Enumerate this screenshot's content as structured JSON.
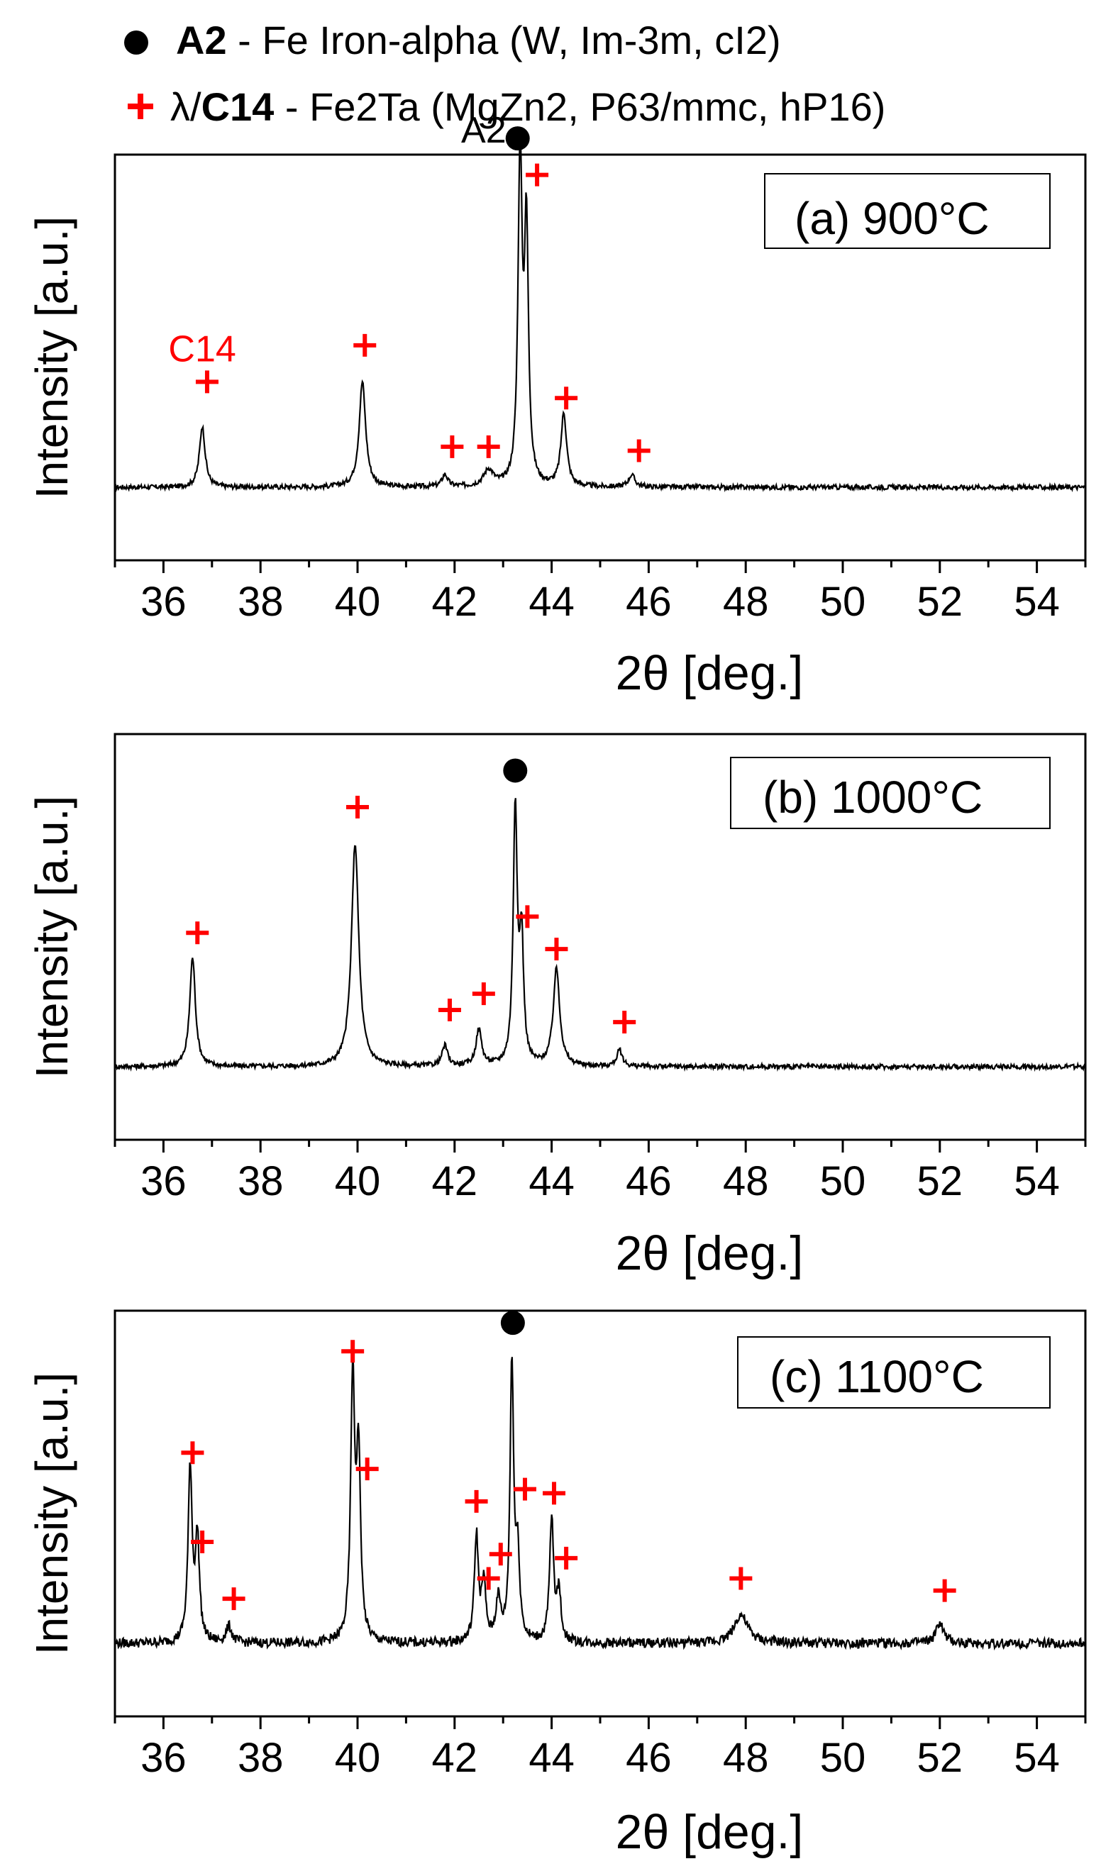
{
  "legend": {
    "entries": [
      {
        "symbol": "circle",
        "color": "#000000",
        "label_bold": "A2",
        "label_rest": " - Fe Iron-alpha (W, Im-3m, cI2)"
      },
      {
        "symbol": "plus",
        "color": "#ff0000",
        "label_prefix": "λ/",
        "label_bold": "C14",
        "label_rest": " - Fe2Ta (MgZn2, P63/mmc, hP16)"
      }
    ]
  },
  "colors": {
    "trace": "#000000",
    "c14_marker": "#ff0000",
    "a2_marker": "#000000",
    "axis": "#000000"
  },
  "chart_data": [
    {
      "type": "line",
      "title": "(a) 900°C",
      "xlabel": "2θ [deg.]",
      "ylabel": "Intensity [a.u.]",
      "xlim": [
        35,
        55
      ],
      "ylim": [
        0,
        100
      ],
      "xticks": [
        36,
        38,
        40,
        42,
        44,
        46,
        48,
        50,
        52,
        54
      ],
      "baseline": 18,
      "peaks": [
        {
          "x": 36.8,
          "h": 15,
          "w": 0.07
        },
        {
          "x": 40.1,
          "h": 26,
          "w": 0.08
        },
        {
          "x": 41.8,
          "h": 3,
          "w": 0.07
        },
        {
          "x": 42.7,
          "h": 4,
          "w": 0.12
        },
        {
          "x": 43.35,
          "h": 81,
          "w": 0.05
        },
        {
          "x": 43.48,
          "h": 62,
          "w": 0.05
        },
        {
          "x": 44.25,
          "h": 18,
          "w": 0.07
        },
        {
          "x": 45.65,
          "h": 3,
          "w": 0.08
        }
      ],
      "markers": [
        {
          "phase": "C14",
          "x": 36.9,
          "y": 44
        },
        {
          "phase": "C14",
          "x": 40.15,
          "y": 53
        },
        {
          "phase": "C14",
          "x": 41.95,
          "y": 28
        },
        {
          "phase": "C14",
          "x": 42.7,
          "y": 28
        },
        {
          "phase": "C14",
          "x": 43.7,
          "y": 95
        },
        {
          "phase": "C14",
          "x": 44.3,
          "y": 40
        },
        {
          "phase": "C14",
          "x": 45.8,
          "y": 27
        },
        {
          "phase": "A2",
          "x": 43.3,
          "y": 104
        }
      ],
      "annotations": [
        {
          "text": "C14",
          "x": 36.8,
          "y": 49,
          "color": "#ff0000"
        },
        {
          "text": "A2",
          "x": 42.6,
          "y": 103,
          "color": "#000000"
        }
      ]
    },
    {
      "type": "line",
      "title": "(b) 1000°C",
      "xlabel": "2θ [deg.]",
      "ylabel": "Intensity [a.u.]",
      "xlim": [
        35,
        55
      ],
      "ylim": [
        0,
        100
      ],
      "xticks": [
        36,
        38,
        40,
        42,
        44,
        46,
        48,
        50,
        52,
        54
      ],
      "baseline": 18,
      "peaks": [
        {
          "x": 36.6,
          "h": 27,
          "w": 0.07
        },
        {
          "x": 39.95,
          "h": 55,
          "w": 0.09
        },
        {
          "x": 41.8,
          "h": 5,
          "w": 0.07
        },
        {
          "x": 42.5,
          "h": 9,
          "w": 0.07
        },
        {
          "x": 43.25,
          "h": 63,
          "w": 0.05
        },
        {
          "x": 43.38,
          "h": 30,
          "w": 0.05
        },
        {
          "x": 44.1,
          "h": 24,
          "w": 0.08
        },
        {
          "x": 45.4,
          "h": 4,
          "w": 0.07
        }
      ],
      "markers": [
        {
          "phase": "C14",
          "x": 36.7,
          "y": 51
        },
        {
          "phase": "C14",
          "x": 40.0,
          "y": 82
        },
        {
          "phase": "C14",
          "x": 41.9,
          "y": 32
        },
        {
          "phase": "C14",
          "x": 42.6,
          "y": 36
        },
        {
          "phase": "C14",
          "x": 43.5,
          "y": 55
        },
        {
          "phase": "C14",
          "x": 44.1,
          "y": 47
        },
        {
          "phase": "C14",
          "x": 45.5,
          "y": 29
        },
        {
          "phase": "A2",
          "x": 43.25,
          "y": 91
        }
      ],
      "annotations": []
    },
    {
      "type": "line",
      "title": "(c) 1100°C",
      "xlabel": "2θ [deg.]",
      "ylabel": "Intensity [a.u.]",
      "xlim": [
        35,
        55
      ],
      "ylim": [
        0,
        100
      ],
      "xticks": [
        36,
        38,
        40,
        42,
        44,
        46,
        48,
        50,
        52,
        54
      ],
      "baseline": 18,
      "peaks": [
        {
          "x": 36.55,
          "h": 43,
          "w": 0.05
        },
        {
          "x": 36.7,
          "h": 25,
          "w": 0.05
        },
        {
          "x": 37.35,
          "h": 4,
          "w": 0.07
        },
        {
          "x": 39.9,
          "h": 64,
          "w": 0.05
        },
        {
          "x": 40.02,
          "h": 45,
          "w": 0.05
        },
        {
          "x": 42.45,
          "h": 26,
          "w": 0.05
        },
        {
          "x": 42.6,
          "h": 14,
          "w": 0.05
        },
        {
          "x": 42.9,
          "h": 10,
          "w": 0.06
        },
        {
          "x": 43.18,
          "h": 68,
          "w": 0.045
        },
        {
          "x": 43.3,
          "h": 20,
          "w": 0.05
        },
        {
          "x": 44.0,
          "h": 30,
          "w": 0.05
        },
        {
          "x": 44.15,
          "h": 12,
          "w": 0.05
        },
        {
          "x": 47.9,
          "h": 7,
          "w": 0.17
        },
        {
          "x": 52.0,
          "h": 5,
          "w": 0.09
        }
      ],
      "markers": [
        {
          "phase": "C14",
          "x": 36.6,
          "y": 65
        },
        {
          "phase": "C14",
          "x": 36.8,
          "y": 43
        },
        {
          "phase": "C14",
          "x": 37.45,
          "y": 29
        },
        {
          "phase": "C14",
          "x": 39.9,
          "y": 90
        },
        {
          "phase": "C14",
          "x": 40.2,
          "y": 61
        },
        {
          "phase": "C14",
          "x": 42.45,
          "y": 53
        },
        {
          "phase": "C14",
          "x": 42.7,
          "y": 34
        },
        {
          "phase": "C14",
          "x": 42.95,
          "y": 40
        },
        {
          "phase": "C14",
          "x": 43.45,
          "y": 56
        },
        {
          "phase": "C14",
          "x": 44.05,
          "y": 55
        },
        {
          "phase": "C14",
          "x": 44.3,
          "y": 39
        },
        {
          "phase": "C14",
          "x": 47.9,
          "y": 34
        },
        {
          "phase": "C14",
          "x": 52.1,
          "y": 31
        },
        {
          "phase": "A2",
          "x": 43.2,
          "y": 97
        }
      ],
      "annotations": []
    }
  ]
}
